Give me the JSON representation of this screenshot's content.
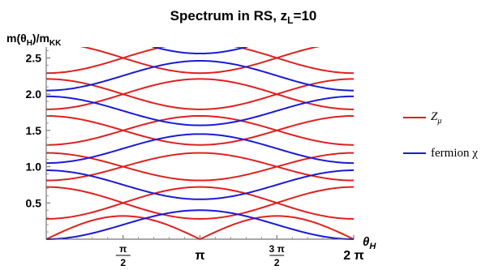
{
  "chart_data": {
    "type": "line",
    "title": "Spectrum in RS, z",
    "title_sub": "L",
    "title_tail": "=10",
    "ylabel_parts": [
      "m(θ",
      "H",
      ")/m",
      "KK"
    ],
    "xlabel_parts": [
      "θ",
      "H"
    ],
    "xlim": [
      0,
      6.2832
    ],
    "ylim": [
      0,
      2.65
    ],
    "xticks": [
      {
        "value": 1.5708,
        "num": "π",
        "den": "2"
      },
      {
        "value": 3.1416,
        "label": "π"
      },
      {
        "value": 4.7124,
        "num": "3 π",
        "den": "2"
      },
      {
        "value": 6.2832,
        "label": "2 π"
      }
    ],
    "yticks": [
      0.5,
      1.0,
      1.5,
      2.0,
      2.5
    ],
    "ytick_labels": [
      "0.5",
      "1.0",
      "1.5",
      "2.0",
      "2.5"
    ],
    "series": [
      {
        "name": "Z_μ",
        "color": "#e0201e",
        "formula": "band-split",
        "bands": [
          {
            "center": 0.0,
            "amp": 0.32
          },
          {
            "center": 0.5,
            "amp": 0.44
          },
          {
            "center": 1.0,
            "amp": 0.38
          },
          {
            "center": 1.5,
            "amp": 0.4
          },
          {
            "center": 2.0,
            "amp": 0.42
          },
          {
            "center": 2.5,
            "amp": 0.42
          }
        ]
      },
      {
        "name": "fermion χ",
        "color": "#1a1ad8",
        "formula": "band-linear",
        "points": [
          [
            [
              0,
              0.0
            ],
            [
              3.1416,
              0.4
            ],
            [
              6.2832,
              0.0
            ]
          ],
          [
            [
              0,
              0.95
            ],
            [
              3.1416,
              0.55
            ],
            [
              6.2832,
              0.95
            ]
          ],
          [
            [
              0,
              1.05
            ],
            [
              3.1416,
              1.45
            ],
            [
              6.2832,
              1.05
            ]
          ],
          [
            [
              0,
              1.97
            ],
            [
              3.1416,
              1.57
            ],
            [
              6.2832,
              1.97
            ]
          ],
          [
            [
              0,
              2.05
            ],
            [
              3.1416,
              2.46
            ],
            [
              6.2832,
              2.05
            ]
          ],
          [
            [
              0,
              3.0
            ],
            [
              3.1416,
              2.56
            ],
            [
              6.2832,
              3.0
            ]
          ]
        ]
      }
    ],
    "legend": {
      "position": "right",
      "entries": [
        {
          "label": "Z",
          "sub": "μ",
          "color": "#e0201e"
        },
        {
          "label": "fermion χ",
          "sub": "",
          "color": "#1a1ad8"
        }
      ]
    }
  }
}
